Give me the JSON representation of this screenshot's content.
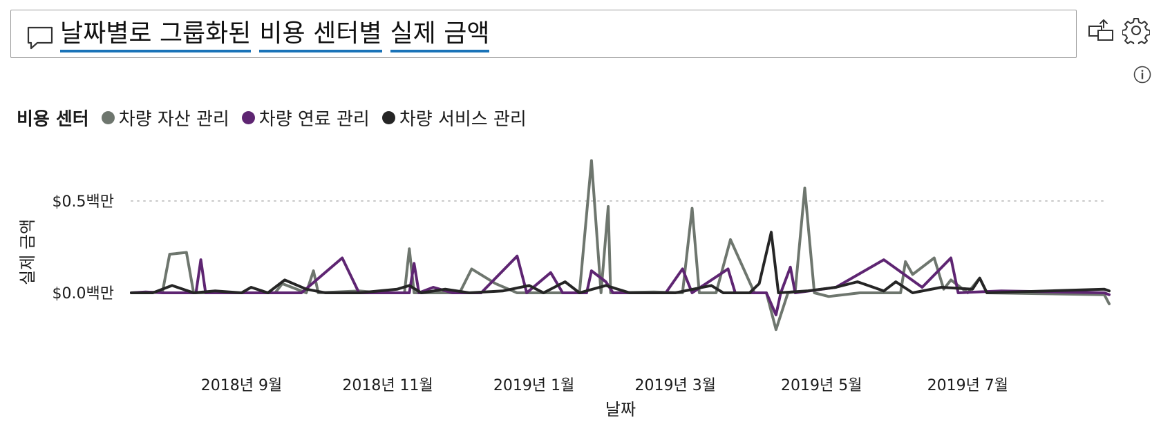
{
  "header": {
    "title_words": [
      "날짜별로",
      "그룹화된",
      "비용",
      "센터별",
      "실제",
      "금액"
    ],
    "title_underlines": [
      [
        "날짜별로",
        "그룹화된"
      ],
      [
        "비용",
        "센터별"
      ],
      [
        "실제",
        "금액"
      ]
    ]
  },
  "icons": {
    "qa": "speech-bubble-icon",
    "share": "share-visual-icon",
    "settings": "gear-icon",
    "info": "info-icon"
  },
  "colors": {
    "underline": "#1a73b8",
    "series": [
      "#6e766e",
      "#5e2572",
      "#252525"
    ],
    "gridline": "#c8c8c8"
  },
  "chart_data": {
    "type": "line",
    "title": "날짜별로 그룹화된 비용 센터별 실제 금액",
    "legend_title": "비용 센터",
    "legend_position": "top-left",
    "xlabel": "날짜",
    "ylabel": "실제 금액",
    "x_ticks": [
      "2018년 9월",
      "2018년 11월",
      "2019년 1월",
      "2019년 3월",
      "2019년 5월",
      "2019년 7월"
    ],
    "x_tick_dates": [
      "2018-09-01",
      "2018-11-01",
      "2019-01-01",
      "2019-03-01",
      "2019-05-01",
      "2019-07-01"
    ],
    "x_range": [
      "2018-07-17",
      "2019-08-27"
    ],
    "y_ticks": [
      "$0.0백만",
      "$0.5백만"
    ],
    "y_tick_values": [
      0,
      0.5
    ],
    "ylim": [
      -0.15,
      0.75
    ],
    "y_unit": "백만 달러",
    "grid": "horizontal dotted",
    "series": [
      {
        "name": "차량 자산 관리",
        "color": "#6e766e",
        "points": [
          [
            "2018-07-17",
            0.0
          ],
          [
            "2018-07-30",
            0.005
          ],
          [
            "2018-08-02",
            0.21
          ],
          [
            "2018-08-09",
            0.22
          ],
          [
            "2018-08-12",
            0.0
          ],
          [
            "2018-09-01",
            0.0
          ],
          [
            "2018-09-15",
            0.0
          ],
          [
            "2018-09-18",
            0.05
          ],
          [
            "2018-09-28",
            0.0
          ],
          [
            "2018-10-01",
            0.12
          ],
          [
            "2018-10-03",
            0.0
          ],
          [
            "2018-10-20",
            0.01
          ],
          [
            "2018-10-29",
            0.0
          ],
          [
            "2018-11-01",
            0.0
          ],
          [
            "2018-11-08",
            0.0
          ],
          [
            "2018-11-10",
            0.24
          ],
          [
            "2018-11-12",
            0.0
          ],
          [
            "2018-12-01",
            0.0
          ],
          [
            "2018-12-06",
            0.13
          ],
          [
            "2018-12-16",
            0.05
          ],
          [
            "2018-12-25",
            0.0
          ],
          [
            "2019-01-15",
            0.0
          ],
          [
            "2019-01-20",
            0.0
          ],
          [
            "2019-01-25",
            0.72
          ],
          [
            "2019-01-29",
            0.0
          ],
          [
            "2019-02-01",
            0.47
          ],
          [
            "2019-02-02",
            0.0
          ],
          [
            "2019-02-20",
            0.005
          ],
          [
            "2019-03-04",
            0.0
          ],
          [
            "2019-03-08",
            0.46
          ],
          [
            "2019-03-11",
            0.0
          ],
          [
            "2019-03-18",
            0.0
          ],
          [
            "2019-03-24",
            0.29
          ],
          [
            "2019-04-03",
            0.0
          ],
          [
            "2019-04-08",
            0.0
          ],
          [
            "2019-04-12",
            -0.2
          ],
          [
            "2019-04-17",
            0.0
          ],
          [
            "2019-04-20",
            0.005
          ],
          [
            "2019-04-24",
            0.57
          ],
          [
            "2019-04-28",
            0.0
          ],
          [
            "2019-05-04",
            -0.02
          ],
          [
            "2019-05-17",
            0.0
          ],
          [
            "2019-06-03",
            0.0
          ],
          [
            "2019-06-05",
            0.17
          ],
          [
            "2019-06-08",
            0.1
          ],
          [
            "2019-06-17",
            0.19
          ],
          [
            "2019-06-21",
            0.02
          ],
          [
            "2019-06-24",
            0.07
          ],
          [
            "2019-07-01",
            0.0
          ],
          [
            "2019-07-06",
            0.08
          ],
          [
            "2019-07-09",
            0.0
          ],
          [
            "2019-08-27",
            -0.01
          ],
          [
            "2019-09-01",
            -0.06
          ]
        ]
      },
      {
        "name": "차량 연료 관리",
        "color": "#5e2572",
        "points": [
          [
            "2018-07-17",
            0.0
          ],
          [
            "2018-07-23",
            0.005
          ],
          [
            "2018-07-30",
            0.0
          ],
          [
            "2018-08-13",
            0.0
          ],
          [
            "2018-08-15",
            0.18
          ],
          [
            "2018-08-17",
            0.0
          ],
          [
            "2018-09-01",
            0.0
          ],
          [
            "2018-09-26",
            0.0
          ],
          [
            "2018-10-13",
            0.19
          ],
          [
            "2018-10-20",
            0.0
          ],
          [
            "2018-11-01",
            0.0
          ],
          [
            "2018-11-10",
            0.0
          ],
          [
            "2018-11-12",
            0.16
          ],
          [
            "2018-11-14",
            0.0
          ],
          [
            "2018-11-20",
            0.03
          ],
          [
            "2018-11-28",
            0.0
          ],
          [
            "2018-12-10",
            0.0
          ],
          [
            "2018-12-25",
            0.2
          ],
          [
            "2018-12-29",
            0.0
          ],
          [
            "2019-01-08",
            0.11
          ],
          [
            "2019-01-13",
            0.0
          ],
          [
            "2019-01-23",
            0.0
          ],
          [
            "2019-01-25",
            0.12
          ],
          [
            "2019-01-31",
            0.06
          ],
          [
            "2019-02-03",
            0.0
          ],
          [
            "2019-02-25",
            0.0
          ],
          [
            "2019-03-04",
            0.13
          ],
          [
            "2019-03-08",
            0.0
          ],
          [
            "2019-03-23",
            0.13
          ],
          [
            "2019-03-26",
            0.0
          ],
          [
            "2019-04-08",
            0.0
          ],
          [
            "2019-04-12",
            -0.12
          ],
          [
            "2019-04-14",
            0.0
          ],
          [
            "2019-04-18",
            0.14
          ],
          [
            "2019-04-20",
            0.0
          ],
          [
            "2019-05-07",
            0.03
          ],
          [
            "2019-05-27",
            0.18
          ],
          [
            "2019-06-12",
            0.03
          ],
          [
            "2019-06-24",
            0.19
          ],
          [
            "2019-06-27",
            0.0
          ],
          [
            "2019-07-15",
            0.01
          ],
          [
            "2019-08-27",
            0.0
          ],
          [
            "2019-09-01",
            -0.01
          ]
        ]
      },
      {
        "name": "차량 서비스 관리",
        "color": "#252525",
        "points": [
          [
            "2018-07-17",
            0.0
          ],
          [
            "2018-07-26",
            0.0
          ],
          [
            "2018-08-03",
            0.04
          ],
          [
            "2018-08-12",
            0.0
          ],
          [
            "2018-08-21",
            0.01
          ],
          [
            "2018-09-01",
            0.0
          ],
          [
            "2018-09-05",
            0.03
          ],
          [
            "2018-09-12",
            0.0
          ],
          [
            "2018-09-19",
            0.07
          ],
          [
            "2018-09-28",
            0.02
          ],
          [
            "2018-10-06",
            0.0
          ],
          [
            "2018-10-20",
            0.0
          ],
          [
            "2018-11-05",
            0.02
          ],
          [
            "2018-11-10",
            0.04
          ],
          [
            "2018-11-15",
            0.0
          ],
          [
            "2018-11-25",
            0.02
          ],
          [
            "2018-12-05",
            0.0
          ],
          [
            "2018-12-19",
            0.01
          ],
          [
            "2018-12-30",
            0.04
          ],
          [
            "2019-01-02",
            0.02
          ],
          [
            "2019-01-05",
            0.0
          ],
          [
            "2019-01-14",
            0.06
          ],
          [
            "2019-01-20",
            0.0
          ],
          [
            "2019-01-31",
            0.04
          ],
          [
            "2019-02-10",
            0.0
          ],
          [
            "2019-02-20",
            0.0
          ],
          [
            "2019-03-01",
            0.0
          ],
          [
            "2019-03-16",
            0.04
          ],
          [
            "2019-03-21",
            0.0
          ],
          [
            "2019-04-01",
            0.0
          ],
          [
            "2019-04-05",
            0.05
          ],
          [
            "2019-04-10",
            0.33
          ],
          [
            "2019-04-13",
            0.0
          ],
          [
            "2019-04-25",
            0.01
          ],
          [
            "2019-05-07",
            0.03
          ],
          [
            "2019-05-16",
            0.06
          ],
          [
            "2019-05-27",
            0.01
          ],
          [
            "2019-06-01",
            0.06
          ],
          [
            "2019-06-08",
            0.0
          ],
          [
            "2019-06-20",
            0.03
          ],
          [
            "2019-07-03",
            0.02
          ],
          [
            "2019-07-06",
            0.08
          ],
          [
            "2019-07-09",
            0.0
          ],
          [
            "2019-08-27",
            0.02
          ],
          [
            "2019-09-01",
            0.01
          ]
        ]
      }
    ]
  }
}
